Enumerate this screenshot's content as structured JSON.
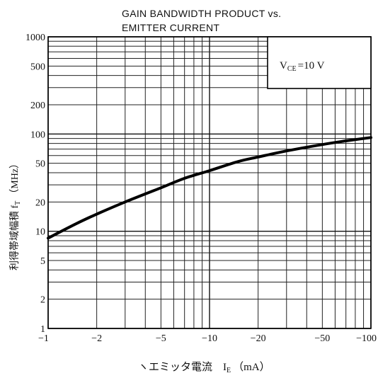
{
  "chart_data": {
    "type": "line",
    "title_line1": "GAIN  BANDWIDTH  PRODUCT  vs.",
    "title_line2": "EMITTER CURRENT",
    "xlabel": "ヽエミッタ電流　I",
    "xlabel_sub": "E",
    "xlabel_unit": "（mA）",
    "ylabel": "利得帯域幅積 f",
    "ylabel_sub": "T",
    "ylabel_unit": "（MHz）",
    "annotation_main": "V",
    "annotation_sub": "CE",
    "annotation_rest": "=10  V",
    "xscale": "log",
    "yscale": "log",
    "xlim": [
      1,
      100
    ],
    "ylim": [
      1,
      1000
    ],
    "x_ticks": [
      1,
      2,
      5,
      10,
      20,
      50,
      100
    ],
    "x_tick_labels": [
      "−1",
      "−2",
      "−5",
      "−10",
      "−20",
      "−50",
      "−100"
    ],
    "y_ticks": [
      1,
      2,
      5,
      10,
      20,
      50,
      100,
      200,
      500,
      1000
    ],
    "y_tick_labels": [
      "1",
      "2",
      "5",
      "10",
      "20",
      "50",
      "100",
      "200",
      "500",
      "1000"
    ],
    "grid": true,
    "series": [
      {
        "x": [
          1,
          1.5,
          2,
          3,
          5,
          7,
          10,
          15,
          20,
          30,
          50,
          70,
          100
        ],
        "y": [
          8.5,
          12,
          15,
          20,
          28,
          35,
          42,
          52,
          58,
          67,
          78,
          85,
          92
        ]
      }
    ]
  }
}
